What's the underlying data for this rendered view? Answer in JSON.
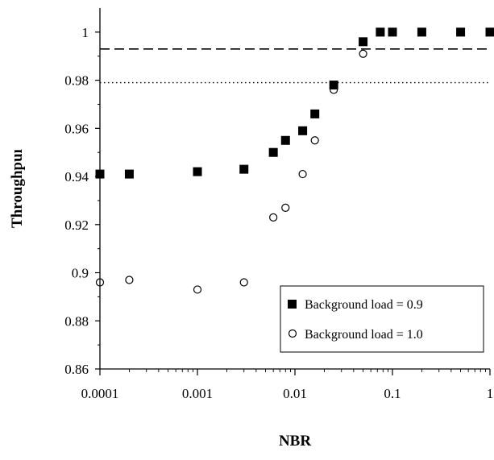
{
  "chart_data": {
    "type": "scatter",
    "title": "",
    "xlabel": "NBR",
    "ylabel": "Throughpuı",
    "x_scale": "log",
    "xlim": [
      0.0001,
      1
    ],
    "ylim": [
      0.86,
      1.01
    ],
    "x_ticks": [
      "0.0001",
      "0.001",
      "0.01",
      "0.1",
      "1"
    ],
    "y_ticks": [
      "0.86",
      "0.88",
      "0.9",
      "0.92",
      "0.94",
      "0.96",
      "0.98",
      "1"
    ],
    "grid": false,
    "legend_position": "bottom-right",
    "series": [
      {
        "name": "Background load = 0.9",
        "marker": "filled-square",
        "color": "#000000",
        "x": [
          0.0001,
          0.0002,
          0.001,
          0.003,
          0.006,
          0.008,
          0.012,
          0.016,
          0.025,
          0.05,
          0.075,
          0.1,
          0.2,
          0.5,
          1
        ],
        "y": [
          0.941,
          0.941,
          0.942,
          0.943,
          0.95,
          0.955,
          0.959,
          0.966,
          0.978,
          0.996,
          1.0,
          1.0,
          1.0,
          1.0,
          1.0
        ]
      },
      {
        "name": "Background load = 1.0",
        "marker": "open-circle",
        "color": "#000000",
        "x": [
          0.0001,
          0.0002,
          0.001,
          0.003,
          0.006,
          0.008,
          0.012,
          0.016,
          0.025,
          0.05,
          0.075,
          0.1,
          0.2,
          0.5,
          1
        ],
        "y": [
          0.896,
          0.897,
          0.893,
          0.896,
          0.923,
          0.927,
          0.941,
          0.955,
          0.976,
          0.991,
          1.0,
          1.0,
          1.0,
          1.0,
          1.0
        ]
      }
    ],
    "reference_lines": [
      {
        "style": "dashed",
        "y": 0.993
      },
      {
        "style": "dotted",
        "y": 0.979
      }
    ]
  }
}
